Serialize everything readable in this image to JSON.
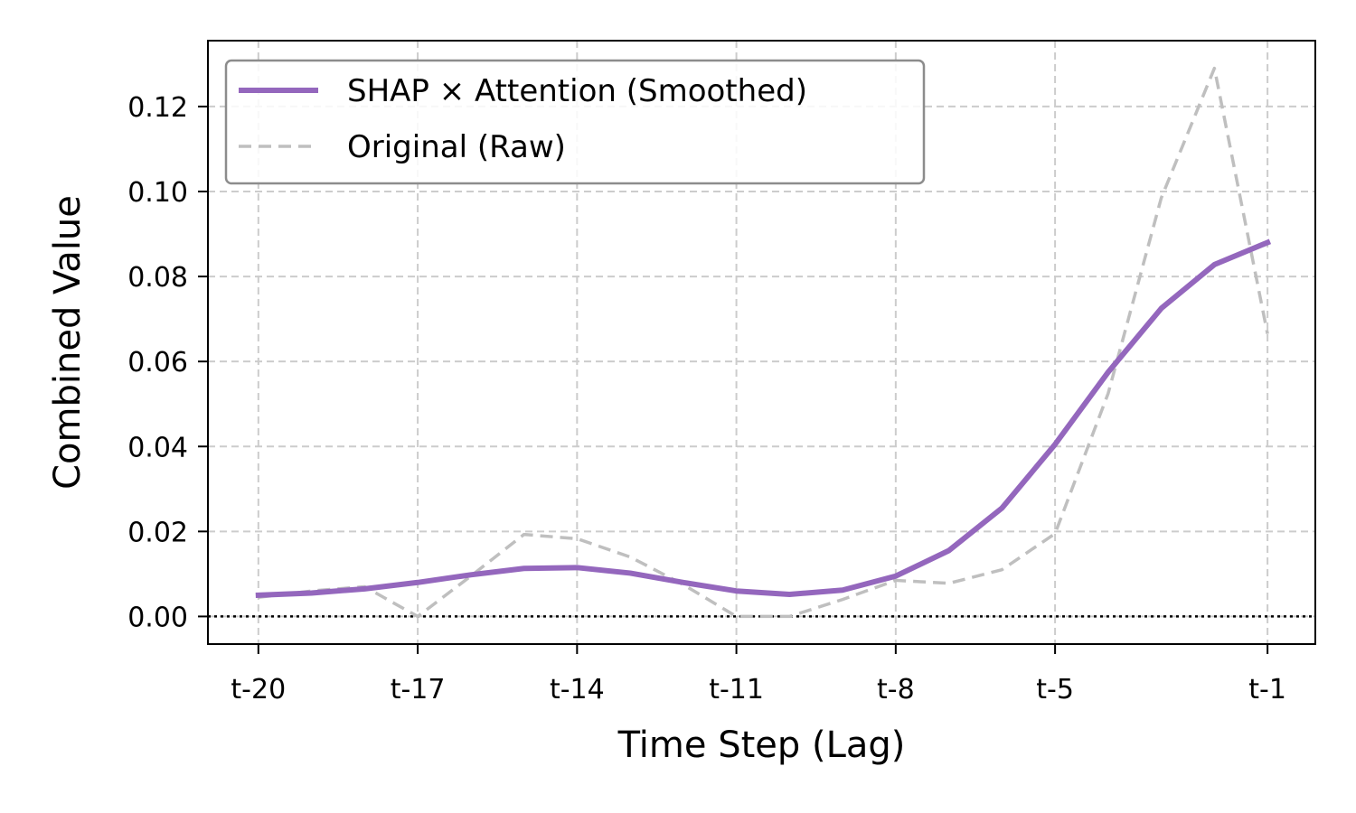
{
  "chart_data": {
    "type": "line",
    "title": "",
    "xlabel": "Time Step (Lag)",
    "ylabel": "Combined Value",
    "x": [
      -20,
      -19,
      -18,
      -17,
      -16,
      -15,
      -14,
      -13,
      -12,
      -11,
      -10,
      -9,
      -8,
      -7,
      -6,
      -5,
      -4,
      -3,
      -2,
      -1
    ],
    "xtick_values": [
      -20,
      -17,
      -14,
      -11,
      -8,
      -5,
      -1
    ],
    "xtick_labels": [
      "t-20",
      "t-17",
      "t-14",
      "t-11",
      "t-8",
      "t-5",
      "t-1"
    ],
    "xlim": [
      -20.95,
      -0.1
    ],
    "ylim": [
      -0.0065,
      0.1355
    ],
    "yticks": [
      0.0,
      0.02,
      0.04,
      0.06,
      0.08,
      0.1,
      0.12
    ],
    "ytick_labels": [
      "0.00",
      "0.02",
      "0.04",
      "0.06",
      "0.08",
      "0.10",
      "0.12"
    ],
    "grid": true,
    "reference_line_y": 0.0,
    "legend_position": "top-left",
    "series": [
      {
        "name": "SHAP × Attention (Smoothed)",
        "color": "#9467bd",
        "style": "solid",
        "values": [
          0.005,
          0.0055,
          0.0065,
          0.008,
          0.0098,
          0.0113,
          0.0115,
          0.0102,
          0.008,
          0.006,
          0.0052,
          0.0062,
          0.0095,
          0.0155,
          0.0255,
          0.0405,
          0.0575,
          0.0725,
          0.0828,
          0.088
        ]
      },
      {
        "name": "Original (Raw)",
        "color": "#bfbfbf",
        "style": "dashed",
        "values": [
          0.0045,
          0.006,
          0.007,
          0.0,
          0.0095,
          0.0193,
          0.0183,
          0.014,
          0.0075,
          0.0,
          0.0,
          0.004,
          0.0085,
          0.0078,
          0.011,
          0.0195,
          0.0525,
          0.0985,
          0.129,
          0.0665
        ]
      }
    ]
  }
}
